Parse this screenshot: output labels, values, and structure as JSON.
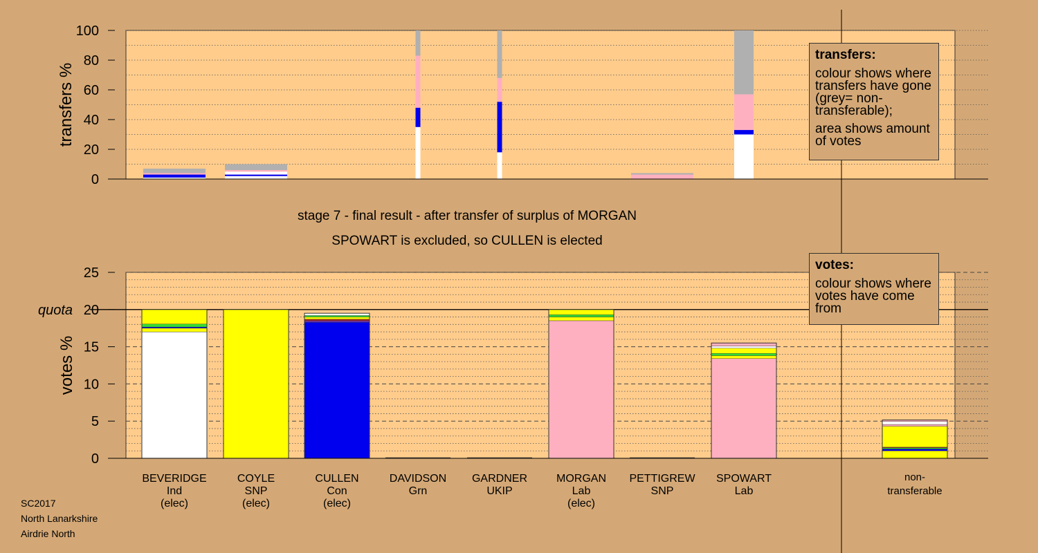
{
  "colors": {
    "page_bg": "#d4a876",
    "plot_bg": "#ffcc8c",
    "white": "#ffffff",
    "yellow": "#ffff00",
    "blue": "#0000ee",
    "pink": "#ffb0c0",
    "grey": "#b0b0b0",
    "green": "#33dd33",
    "darkred": "#aa2222",
    "purple": "#7733aa"
  },
  "stage_title": "stage 7 - final result - after transfer of surplus of MORGAN",
  "stage_subtitle": "SPOWART is excluded, so CULLEN is elected",
  "footer": [
    "SC2017",
    "North Lanarkshire",
    "Airdrie North"
  ],
  "legend_transfers": {
    "title": "transfers:",
    "line1": "colour shows where transfers have gone (grey= non-transferable);",
    "line2": "area shows amount of votes"
  },
  "legend_votes": {
    "title": "votes:",
    "line1": "colour shows where votes have come from"
  },
  "chart_data": [
    {
      "type": "bar",
      "stacked": true,
      "ylabel": "transfers %",
      "ylim": [
        0,
        100
      ],
      "yticks": [
        0,
        20,
        40,
        60,
        80,
        100
      ],
      "bars": [
        {
          "category": "BEVERIDGE",
          "width": "wide",
          "segments": [
            [
              "white",
              1
            ],
            [
              "blue",
              2
            ],
            [
              "pink",
              1
            ],
            [
              "grey",
              3
            ]
          ]
        },
        {
          "category": "COYLE",
          "width": "wide",
          "segments": [
            [
              "white",
              2
            ],
            [
              "blue",
              1
            ],
            [
              "white",
              2
            ],
            [
              "pink",
              1
            ],
            [
              "grey",
              4
            ]
          ]
        },
        {
          "category": "DAVIDSON",
          "width": "narrow",
          "segments": [
            [
              "white",
              35
            ],
            [
              "blue",
              13
            ],
            [
              "pink",
              35
            ],
            [
              "grey",
              17
            ]
          ]
        },
        {
          "category": "GARDNER",
          "width": "narrow",
          "segments": [
            [
              "white",
              18
            ],
            [
              "blue",
              34
            ],
            [
              "pink",
              16
            ],
            [
              "grey",
              32
            ]
          ]
        },
        {
          "category": "PETTIGREW",
          "width": "wide",
          "segments": [
            [
              "pink",
              3
            ],
            [
              "grey",
              1
            ]
          ]
        },
        {
          "category": "SPOWART",
          "width": "medium",
          "segments": [
            [
              "white",
              30
            ],
            [
              "blue",
              3
            ],
            [
              "pink",
              24
            ],
            [
              "grey",
              43
            ]
          ]
        }
      ]
    },
    {
      "type": "bar",
      "stacked": true,
      "ylabel": "votes %",
      "ylim": [
        0,
        25
      ],
      "yticks": [
        0,
        5,
        10,
        15,
        20,
        25
      ],
      "quota": 20,
      "quota_label": "quota",
      "candidates": [
        {
          "name": "BEVERIDGE",
          "party": "Ind",
          "status": "(elec)",
          "segments": [
            [
              "white",
              17.0
            ],
            [
              "yellow",
              0.5
            ],
            [
              "blue",
              0.15
            ],
            [
              "green",
              0.4
            ],
            [
              "yellow",
              1.95
            ]
          ]
        },
        {
          "name": "COYLE",
          "party": "SNP",
          "status": "(elec)",
          "segments": [
            [
              "yellow",
              20.0
            ]
          ]
        },
        {
          "name": "CULLEN",
          "party": "Con",
          "status": "(elec)",
          "segments": [
            [
              "blue",
              18.3
            ],
            [
              "purple",
              0.2
            ],
            [
              "darkred",
              0.2
            ],
            [
              "yellow",
              0.3
            ],
            [
              "green",
              0.2
            ],
            [
              "white",
              0.3
            ]
          ]
        },
        {
          "name": "DAVIDSON",
          "party": "Grn",
          "status": "",
          "segments": []
        },
        {
          "name": "GARDNER",
          "party": "UKIP",
          "status": "",
          "segments": []
        },
        {
          "name": "MORGAN",
          "party": "Lab",
          "status": "(elec)",
          "segments": [
            [
              "pink",
              18.5
            ],
            [
              "yellow",
              0.5
            ],
            [
              "green",
              0.3
            ],
            [
              "yellow",
              0.7
            ]
          ]
        },
        {
          "name": "PETTIGREW",
          "party": "SNP",
          "status": "",
          "segments": []
        },
        {
          "name": "SPOWART",
          "party": "Lab",
          "status": "",
          "segments": [
            [
              "pink",
              13.4
            ],
            [
              "yellow",
              0.4
            ],
            [
              "green",
              0.3
            ],
            [
              "yellow",
              0.7
            ],
            [
              "white",
              0.3
            ],
            [
              "pink",
              0.4
            ]
          ]
        },
        {
          "name": "non-transferable",
          "party": "",
          "status": "",
          "segments": [
            [
              "yellow",
              1.0
            ],
            [
              "blue",
              0.25
            ],
            [
              "green",
              0.15
            ],
            [
              "darkred",
              0.1
            ],
            [
              "yellow",
              2.8
            ],
            [
              "pink",
              0.25
            ],
            [
              "white",
              0.4
            ],
            [
              "pink",
              0.2
            ]
          ]
        }
      ]
    }
  ]
}
